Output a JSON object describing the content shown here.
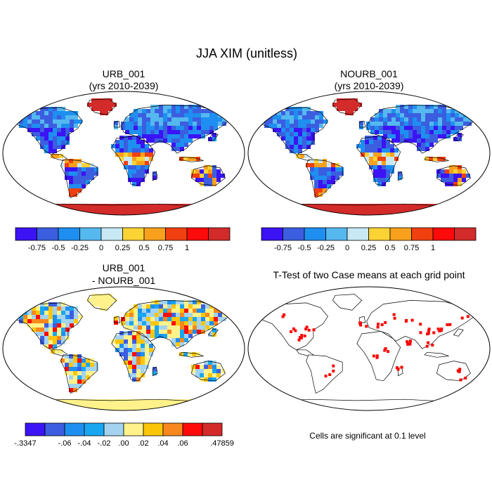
{
  "figure": {
    "title": "JJA XIM (unitless)",
    "panels": [
      {
        "id": "urb",
        "title_line1": "URB_001",
        "title_line2": "(yrs 2010-2039)",
        "palette": "xim"
      },
      {
        "id": "nourb",
        "title_line1": "NOURB_001",
        "title_line2": "(yrs 2010-2039)",
        "palette": "xim"
      },
      {
        "id": "diff",
        "title_line1": "URB_001",
        "title_line2": "- NOURB_001",
        "palette": "diff"
      },
      {
        "id": "ttest",
        "title_line1": "T-Test of two Case means at each grid point",
        "title_line2": "",
        "palette": "ttest"
      }
    ],
    "colorbar_xim": {
      "labels": [
        "-0.75",
        "-0.5",
        "-0.25",
        "0",
        "0.25",
        "0.5",
        "0.75",
        "1"
      ],
      "colors": [
        "#3b13f5",
        "#3b5ee0",
        "#1e8ff0",
        "#55b8ee",
        "#c8e8f4",
        "#fbd335",
        "#f8a11c",
        "#f04010",
        "#fd0a0a",
        "#d32a2a"
      ]
    },
    "colorbar_diff": {
      "labels": [
        "-.3347",
        "-.06",
        "-.04",
        "-.02",
        ".00",
        ".02",
        ".04",
        ".06",
        ".47859"
      ],
      "colors": [
        "#3b13f5",
        "#3d5ee0",
        "#1e8ff0",
        "#19a6f0",
        "#a3d3ef",
        "#fff28a",
        "#fbc60a",
        "#f8881d",
        "#fd0a0a",
        "#d32a2a"
      ]
    },
    "ttest_note": "Cells are significant at 0.1 level"
  }
}
